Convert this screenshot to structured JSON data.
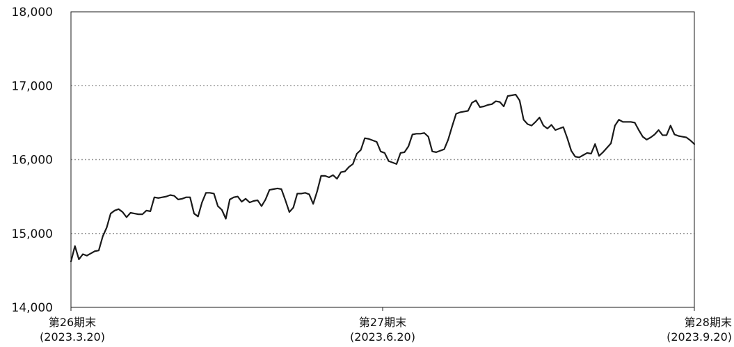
{
  "chart_data": {
    "type": "line",
    "title": "",
    "xlabel": "",
    "ylabel": "",
    "ylim": [
      14000,
      18000
    ],
    "y_ticks": [
      {
        "value": 14000,
        "label": "14,000"
      },
      {
        "value": 15000,
        "label": "15,000"
      },
      {
        "value": 16000,
        "label": "16,000"
      },
      {
        "value": 17000,
        "label": "17,000"
      },
      {
        "value": 18000,
        "label": "18,000"
      }
    ],
    "x_range": [
      0,
      128
    ],
    "x_ticks": [
      {
        "x": 0,
        "label": "第26期末",
        "sublabel": "(2023.3.20)"
      },
      {
        "x": 64,
        "label": "第27期末",
        "sublabel": "(2023.6.20)"
      },
      {
        "x": 128,
        "label": "第28期末",
        "sublabel": "(2023.9.20)"
      }
    ],
    "grid": "horizontal dotted",
    "legend": "none",
    "line_color": "#1a1a1a",
    "series": [
      {
        "values": [
          14620,
          14830,
          14650,
          14720,
          14700,
          14730,
          14760,
          14770,
          14960,
          15080,
          15270,
          15310,
          15330,
          15290,
          15220,
          15280,
          15270,
          15260,
          15260,
          15310,
          15300,
          15490,
          15480,
          15490,
          15500,
          15520,
          15510,
          15460,
          15470,
          15490,
          15490,
          15270,
          15230,
          15420,
          15550,
          15550,
          15540,
          15370,
          15320,
          15200,
          15460,
          15490,
          15500,
          15430,
          15470,
          15420,
          15440,
          15450,
          15370,
          15460,
          15590,
          15600,
          15610,
          15600,
          15450,
          15290,
          15350,
          15540,
          15540,
          15550,
          15530,
          15400,
          15570,
          15780,
          15780,
          15760,
          15790,
          15740,
          15830,
          15840,
          15900,
          15940,
          16080,
          16130,
          16290,
          16280,
          16260,
          16240,
          16110,
          16090,
          15980,
          15960,
          15940,
          16090,
          16100,
          16180,
          16340,
          16350,
          16350,
          16360,
          16310,
          16110,
          16100,
          16120,
          16140,
          16270,
          16450,
          16620,
          16640,
          16650,
          16660,
          16770,
          16800,
          16710,
          16720,
          16740,
          16750,
          16790,
          16780,
          16720,
          16860,
          16870,
          16880,
          16800,
          16540,
          16480,
          16460,
          16510,
          16570,
          16460,
          16420,
          16470,
          16400,
          16420,
          16440,
          16290,
          16120,
          16040,
          16030,
          16060,
          16090,
          16080,
          16210,
          16050,
          16100,
          16160,
          16220,
          16460,
          16540,
          16510,
          16510,
          16510,
          16500,
          16400,
          16310,
          16270,
          16300,
          16340,
          16400,
          16330,
          16330,
          16460,
          16340,
          16320,
          16310,
          16300,
          16260,
          16210
        ]
      }
    ]
  }
}
